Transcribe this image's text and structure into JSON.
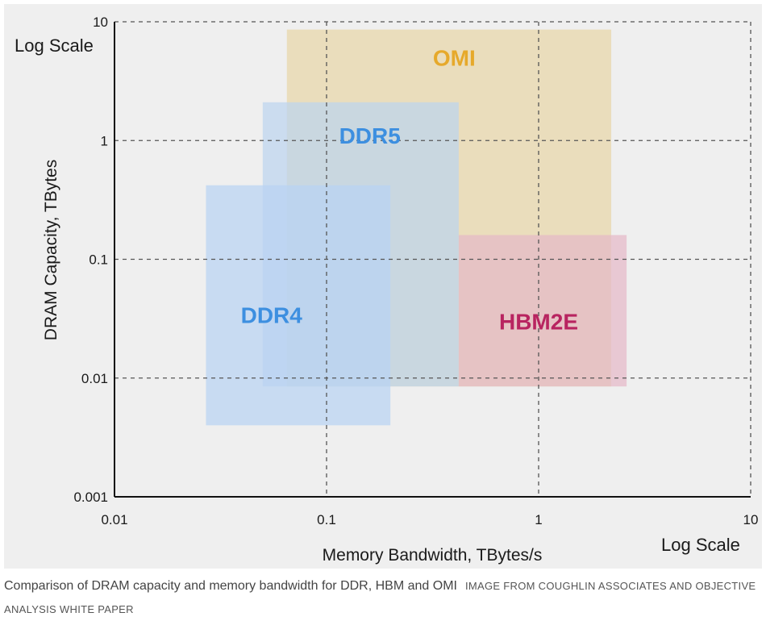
{
  "chart_data": {
    "type": "area",
    "title": "",
    "xlabel": "Memory Bandwidth, TBytes/s",
    "ylabel": "DRAM Capacity, TBytes",
    "x_scale": "log",
    "y_scale": "log",
    "xlim": [
      0.01,
      10
    ],
    "ylim": [
      0.001,
      10
    ],
    "x_ticks": [
      0.01,
      0.1,
      1,
      10
    ],
    "y_ticks": [
      0.001,
      0.01,
      0.1,
      1,
      10
    ],
    "x_tick_labels": [
      "0.01",
      "0.1",
      "1",
      "10"
    ],
    "y_tick_labels": [
      "0.001",
      "0.01",
      "0.1",
      "1",
      "10"
    ],
    "x_scale_note": "Log Scale",
    "y_scale_note": "Log Scale",
    "grid": "dashed",
    "regions": [
      {
        "name": "OMI",
        "x": [
          0.065,
          2.2
        ],
        "y": [
          0.0085,
          8.6
        ],
        "color": "#e8d6a8",
        "label_color": "#e6a92b",
        "label_at": [
          0.4,
          5.0
        ]
      },
      {
        "name": "DDR5",
        "x": [
          0.05,
          0.42
        ],
        "y": [
          0.0085,
          2.1
        ],
        "color": "#bdd4ee",
        "label_color": "#3d8fe0",
        "label_at": [
          0.16,
          1.1
        ]
      },
      {
        "name": "DDR4",
        "x": [
          0.027,
          0.2
        ],
        "y": [
          0.004,
          0.42
        ],
        "color": "#b8d2f2",
        "label_color": "#3d8fe0",
        "label_at": [
          0.055,
          0.034
        ]
      },
      {
        "name": "HBM2E",
        "x": [
          0.42,
          2.6
        ],
        "y": [
          0.0085,
          0.16
        ],
        "color": "#e4b8c8",
        "label_color": "#b82460",
        "label_at": [
          1.0,
          0.03
        ]
      }
    ]
  },
  "caption": {
    "text": "Comparison of DRAM capacity and memory bandwidth for DDR, HBM and OMI",
    "credit": "IMAGE FROM COUGHLIN ASSOCIATES AND OBJECTIVE ANALYSIS WHITE PAPER"
  }
}
